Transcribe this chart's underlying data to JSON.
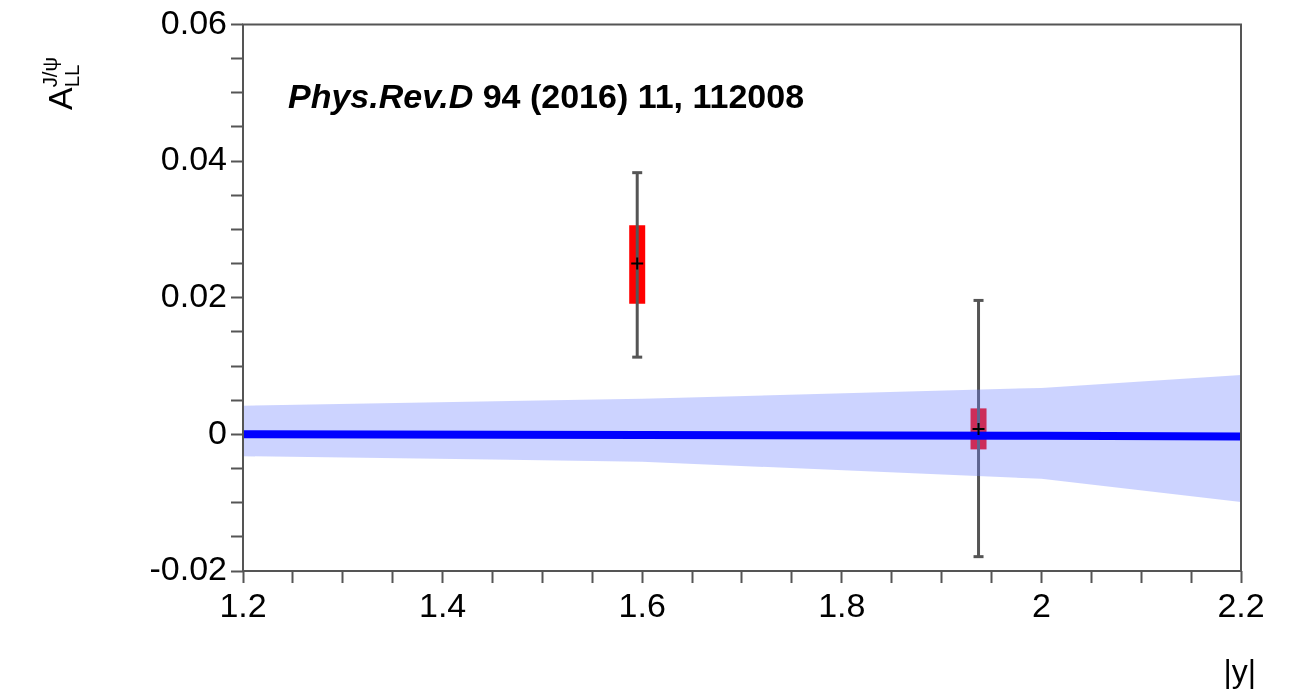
{
  "chart_data": {
    "type": "scatter",
    "xlabel": "|y|",
    "ylabel": "A$^{J/ψ}$$_{LL}$",
    "annotations": [
      "Phys.Rev.D 94 (2016) 11, 112008"
    ],
    "xlim": [
      1.2,
      2.2
    ],
    "xticks": [
      1.2,
      {
        "value": 1.25,
        "label": null
      },
      {
        "value": 1.3,
        "label": null
      },
      {
        "value": 1.35,
        "label": null
      },
      1.4,
      {
        "value": 1.45,
        "label": null
      },
      {
        "value": 1.5,
        "label": null
      },
      {
        "value": 1.55,
        "label": null
      },
      1.6,
      {
        "value": 1.65,
        "label": null
      },
      {
        "value": 1.7,
        "label": null
      },
      {
        "value": 1.75,
        "label": null
      },
      1.8,
      {
        "value": 1.85,
        "label": null
      },
      {
        "value": 1.9,
        "label": null
      },
      {
        "value": 1.95,
        "label": null
      },
      2,
      {
        "value": 2.05,
        "label": null
      },
      {
        "value": 2.1,
        "label": null
      },
      {
        "value": 2.15,
        "label": null
      },
      2.2
    ],
    "ylim": [
      -0.02,
      0.06
    ],
    "yticks": [
      -0.02,
      {
        "value": -0.015,
        "label": null
      },
      {
        "value": -0.01,
        "label": null
      },
      {
        "value": -0.005,
        "label": null
      },
      0,
      {
        "value": 0.005,
        "label": null
      },
      {
        "value": 0.01,
        "label": null
      },
      {
        "value": 0.015,
        "label": null
      },
      0.02,
      {
        "value": 0.025,
        "label": null
      },
      {
        "value": 0.03,
        "label": null
      },
      {
        "value": 0.035,
        "label": null
      },
      0.04,
      {
        "value": 0.045,
        "label": null
      },
      {
        "value": 0.05,
        "label": null
      },
      {
        "value": 0.055,
        "label": null
      },
      0.06
    ],
    "series": [
      {
        "type": "line",
        "color": "#0000ff",
        "x": [
          1.2,
          1.6,
          2.0,
          2.2
        ],
        "values": [
          0,
          -0.0001,
          -0.0002,
          -0.0003
        ],
        "lower": [
          -0.0032,
          -0.004,
          -0.0065,
          -0.0099
        ],
        "upper": [
          0.0042,
          0.0052,
          0.0068,
          0.0087
        ],
        "marker": "none"
      },
      {
        "type": "bar",
        "color": "#ff0000",
        "x": [
          1.595,
          1.937
        ],
        "base": [
          0.0191,
          -0.0022
        ],
        "values": [
          0.0115,
          0.006
        ]
      },
      {
        "type": "scatter",
        "color": "#000000",
        "x": [
          1.595,
          1.937
        ],
        "values": [
          0.025,
          0.0008
        ],
        "errors": [
          [
            0.0113,
            0.0383
          ],
          [
            -0.0179,
            0.0196
          ]
        ],
        "marker": "cross"
      }
    ]
  }
}
